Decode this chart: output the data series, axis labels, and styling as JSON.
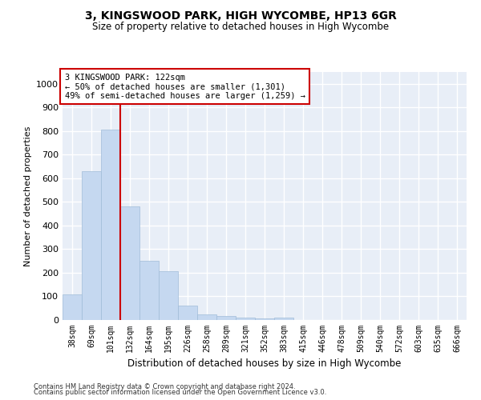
{
  "title": "3, KINGSWOOD PARK, HIGH WYCOMBE, HP13 6GR",
  "subtitle": "Size of property relative to detached houses in High Wycombe",
  "xlabel": "Distribution of detached houses by size in High Wycombe",
  "ylabel": "Number of detached properties",
  "bar_labels": [
    "38sqm",
    "69sqm",
    "101sqm",
    "132sqm",
    "164sqm",
    "195sqm",
    "226sqm",
    "258sqm",
    "289sqm",
    "321sqm",
    "352sqm",
    "383sqm",
    "415sqm",
    "446sqm",
    "478sqm",
    "509sqm",
    "540sqm",
    "572sqm",
    "603sqm",
    "635sqm",
    "666sqm"
  ],
  "bar_values": [
    110,
    630,
    805,
    480,
    250,
    205,
    62,
    25,
    18,
    10,
    8,
    10,
    0,
    0,
    0,
    0,
    0,
    0,
    0,
    0,
    0
  ],
  "bar_color": "#c5d8f0",
  "bar_edge_color": "#a0bcd8",
  "vline_color": "#cc0000",
  "annotation_text": "3 KINGSWOOD PARK: 122sqm\n← 50% of detached houses are smaller (1,301)\n49% of semi-detached houses are larger (1,259) →",
  "annotation_box_color": "#ffffff",
  "annotation_box_edge_color": "#cc0000",
  "ylim": [
    0,
    1050
  ],
  "yticks": [
    0,
    100,
    200,
    300,
    400,
    500,
    600,
    700,
    800,
    900,
    1000
  ],
  "background_color": "#e8eef7",
  "grid_color": "#ffffff",
  "footer_line1": "Contains HM Land Registry data © Crown copyright and database right 2024.",
  "footer_line2": "Contains public sector information licensed under the Open Government Licence v3.0."
}
